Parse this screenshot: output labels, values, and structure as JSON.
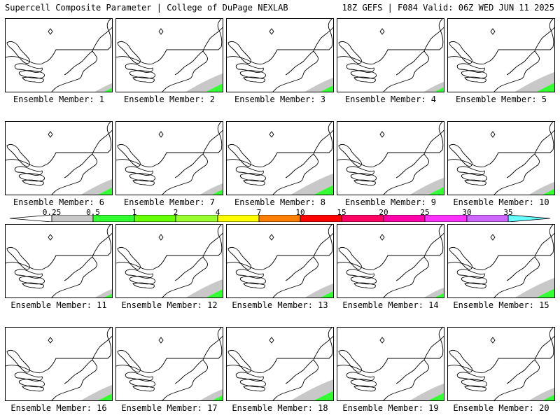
{
  "header": {
    "left": "Supercell Composite Parameter | College of DuPage NEXLAB",
    "right": "18Z GEFS | F084 Valid: 06Z WED JUN 11 2025"
  },
  "colorbar": {
    "ticks": [
      "0.25",
      "0.5",
      "1",
      "2",
      "4",
      "7",
      "10",
      "15",
      "20",
      "25",
      "30",
      "35"
    ],
    "colors": [
      "#c8c8c8",
      "#33ff33",
      "#66ff00",
      "#99ff33",
      "#ffff00",
      "#ff8000",
      "#ff0000",
      "#ff0066",
      "#ff00aa",
      "#ff33ff",
      "#9933ff",
      "#cc66ff",
      "#66ffff"
    ]
  },
  "members": [
    {
      "label": "Ensemble Member: 1"
    },
    {
      "label": "Ensemble Member: 2"
    },
    {
      "label": "Ensemble Member: 3"
    },
    {
      "label": "Ensemble Member: 4"
    },
    {
      "label": "Ensemble Member: 5"
    },
    {
      "label": "Ensemble Member: 6"
    },
    {
      "label": "Ensemble Member: 7"
    },
    {
      "label": "Ensemble Member: 8"
    },
    {
      "label": "Ensemble Member: 9"
    },
    {
      "label": "Ensemble Member: 10"
    },
    {
      "label": "Ensemble Member: 11"
    },
    {
      "label": "Ensemble Member: 12"
    },
    {
      "label": "Ensemble Member: 13"
    },
    {
      "label": "Ensemble Member: 14"
    },
    {
      "label": "Ensemble Member: 15"
    },
    {
      "label": "Ensemble Member: 16"
    },
    {
      "label": "Ensemble Member: 17"
    },
    {
      "label": "Ensemble Member: 18"
    },
    {
      "label": "Ensemble Member: 19"
    },
    {
      "label": "Ensemble Member: 20"
    }
  ]
}
